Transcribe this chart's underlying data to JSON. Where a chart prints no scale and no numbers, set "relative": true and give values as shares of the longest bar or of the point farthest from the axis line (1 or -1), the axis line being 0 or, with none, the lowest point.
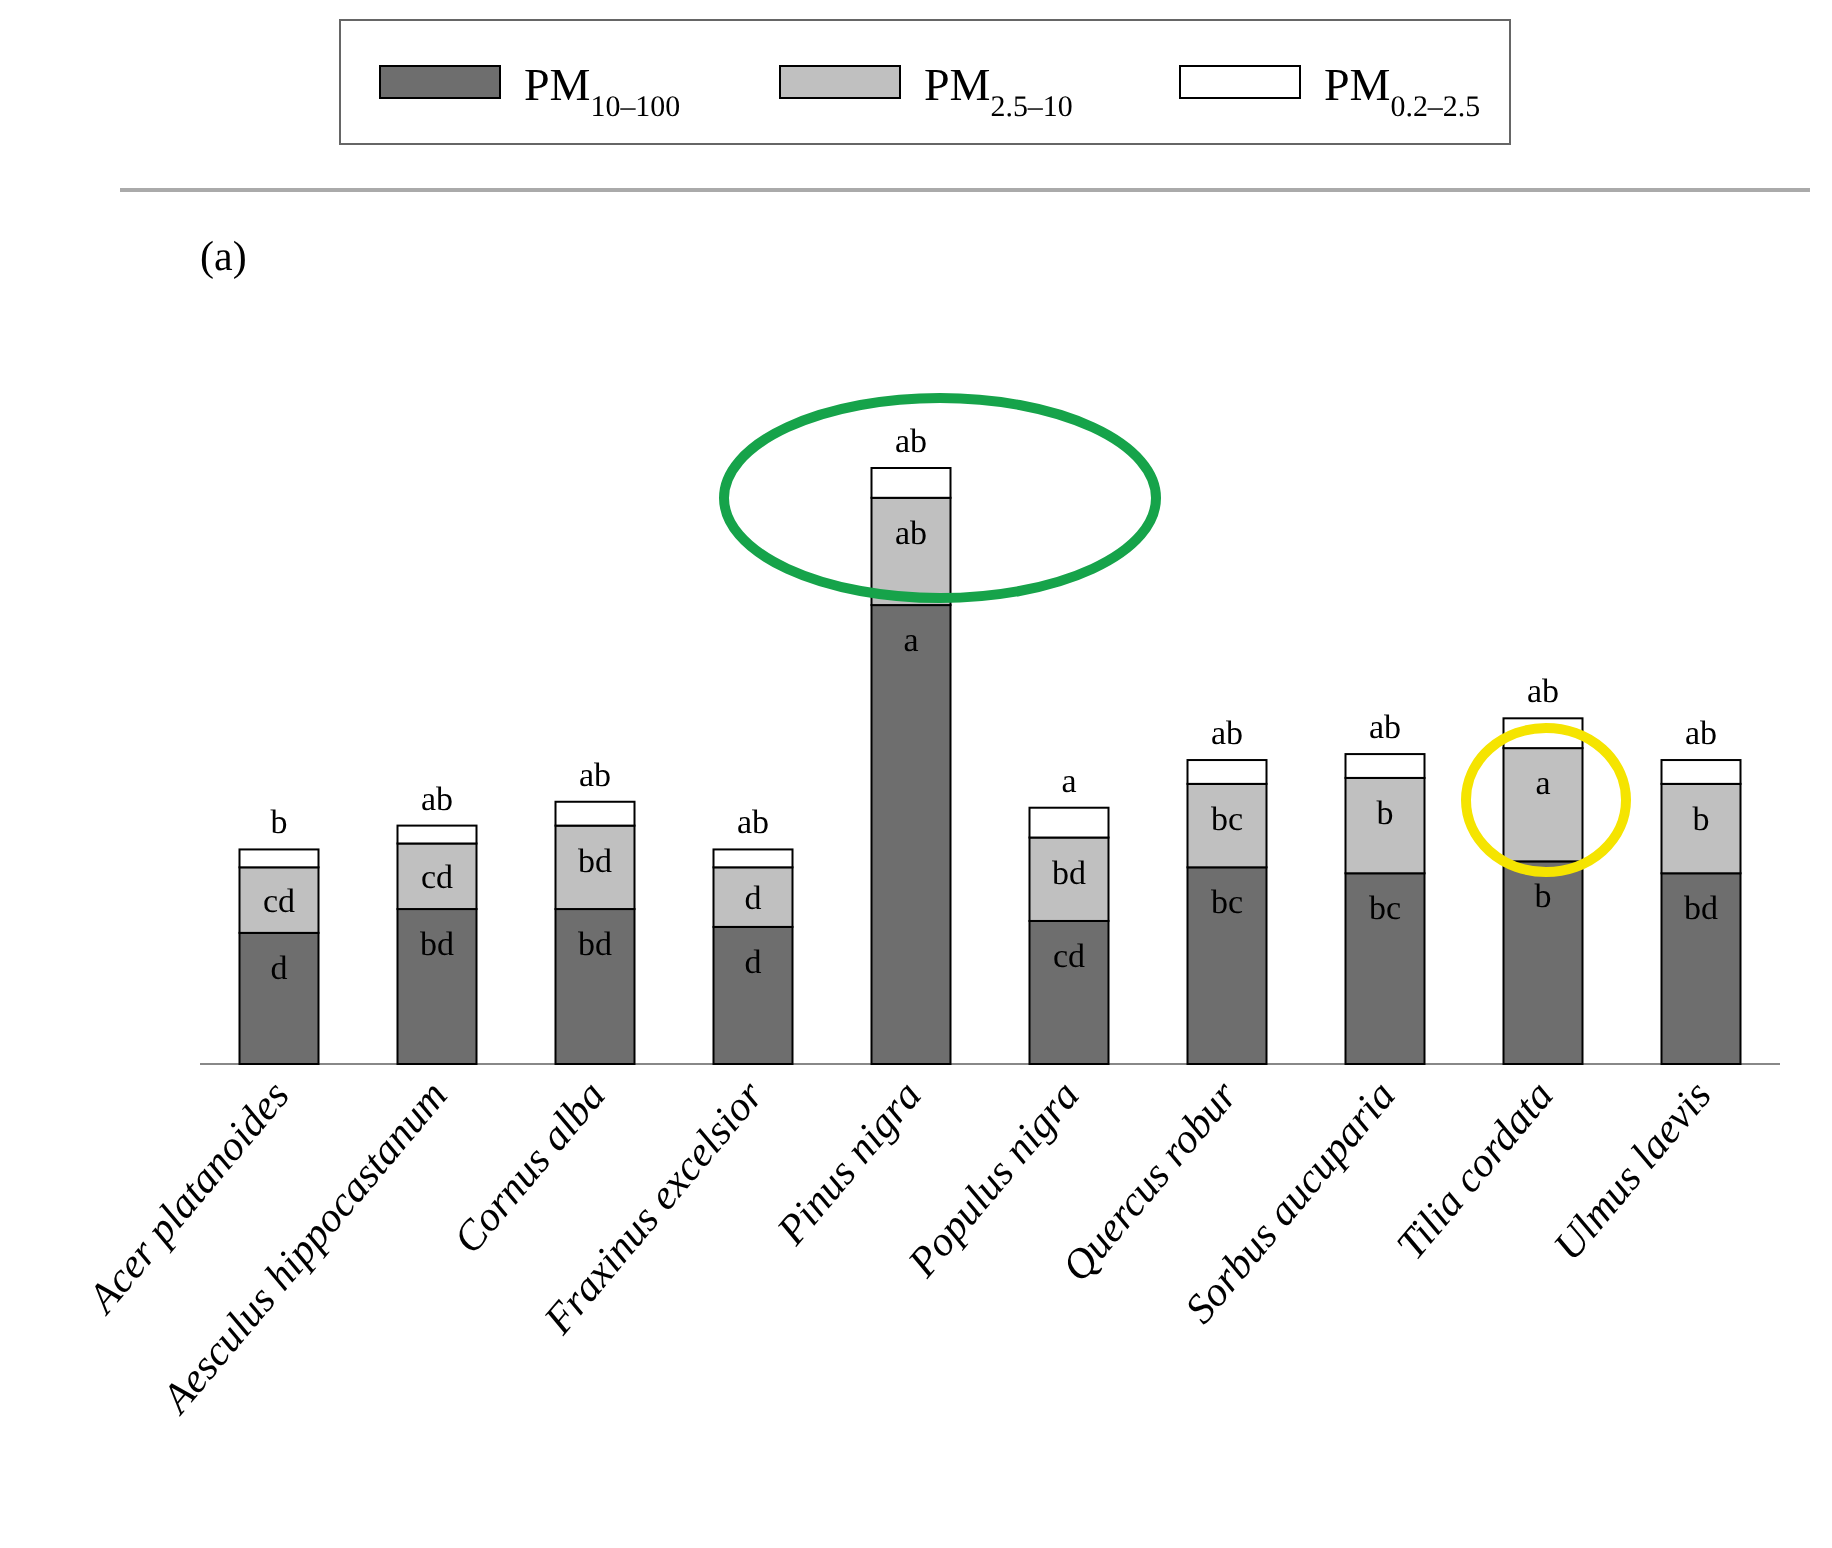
{
  "chart_data": {
    "type": "bar",
    "title": "(a)",
    "stacked": true,
    "relative": true,
    "legend": "top",
    "categories": [
      "Acer platanoides",
      "Aesculus hippocastanum",
      "Cornus alba",
      "Fraxinus excelsior",
      "Pinus nigra",
      "Populus nigra",
      "Quercus robur",
      "Sorbus aucuparia",
      "Tilia cordata",
      "Ulmus laevis"
    ],
    "series": [
      {
        "name": "PM$_{10–100}$",
        "color": "#6e6e6e",
        "values": [
          0.22,
          0.26,
          0.26,
          0.23,
          0.77,
          0.24,
          0.33,
          0.32,
          0.34,
          0.32
        ]
      },
      {
        "name": "PM$_{2.5–10}$",
        "color": "#c0c0c0",
        "values": [
          0.11,
          0.11,
          0.14,
          0.1,
          0.18,
          0.14,
          0.14,
          0.16,
          0.19,
          0.15
        ]
      },
      {
        "name": "PM$_{0.2–2.5}$",
        "color": "#ffffff",
        "values": [
          0.03,
          0.03,
          0.04,
          0.03,
          0.05,
          0.05,
          0.04,
          0.04,
          0.05,
          0.04
        ]
      }
    ],
    "annotations": [
      {
        "text": "d",
        "x": "Acer platanoides",
        "y": 0.22
      },
      {
        "text": "cd",
        "x": "Acer platanoides",
        "y": 0.33
      },
      {
        "text": "b",
        "x": "Acer platanoides",
        "y": 0.36
      },
      {
        "text": "bd",
        "x": "Aesculus hippocastanum",
        "y": 0.26
      },
      {
        "text": "cd",
        "x": "Aesculus hippocastanum",
        "y": 0.37
      },
      {
        "text": "ab",
        "x": "Aesculus hippocastanum",
        "y": 0.4
      },
      {
        "text": "bd",
        "x": "Cornus alba",
        "y": 0.26
      },
      {
        "text": "bd",
        "x": "Cornus alba",
        "y": 0.4
      },
      {
        "text": "ab",
        "x": "Cornus alba",
        "y": 0.44
      },
      {
        "text": "d",
        "x": "Fraxinus excelsior",
        "y": 0.23
      },
      {
        "text": "d",
        "x": "Fraxinus excelsior",
        "y": 0.33
      },
      {
        "text": "ab",
        "x": "Fraxinus excelsior",
        "y": 0.36
      },
      {
        "text": "a",
        "x": "Pinus nigra",
        "y": 0.77
      },
      {
        "text": "ab",
        "x": "Pinus nigra",
        "y": 0.95
      },
      {
        "text": "ab",
        "x": "Pinus nigra",
        "y": 1.0
      },
      {
        "text": "cd",
        "x": "Populus nigra",
        "y": 0.24
      },
      {
        "text": "bd",
        "x": "Populus nigra",
        "y": 0.38
      },
      {
        "text": "a",
        "x": "Populus nigra",
        "y": 0.43
      },
      {
        "text": "bc",
        "x": "Quercus robur",
        "y": 0.33
      },
      {
        "text": "bc",
        "x": "Quercus robur",
        "y": 0.47
      },
      {
        "text": "ab",
        "x": "Quercus robur",
        "y": 0.51
      },
      {
        "text": "bc",
        "x": "Sorbus aucuparia",
        "y": 0.32
      },
      {
        "text": "b",
        "x": "Sorbus aucuparia",
        "y": 0.48
      },
      {
        "text": "ab",
        "x": "Sorbus aucuparia",
        "y": 0.52
      },
      {
        "text": "b",
        "x": "Tilia cordata",
        "y": 0.34
      },
      {
        "text": "a",
        "x": "Tilia cordata",
        "y": 0.53
      },
      {
        "text": "ab",
        "x": "Tilia cordata",
        "y": 0.58
      },
      {
        "text": "bd",
        "x": "Ulmus laevis",
        "y": 0.32
      },
      {
        "text": "b",
        "x": "Ulmus laevis",
        "y": 0.47
      },
      {
        "text": "ab",
        "x": "Ulmus laevis",
        "y": 0.51
      }
    ]
  }
}
